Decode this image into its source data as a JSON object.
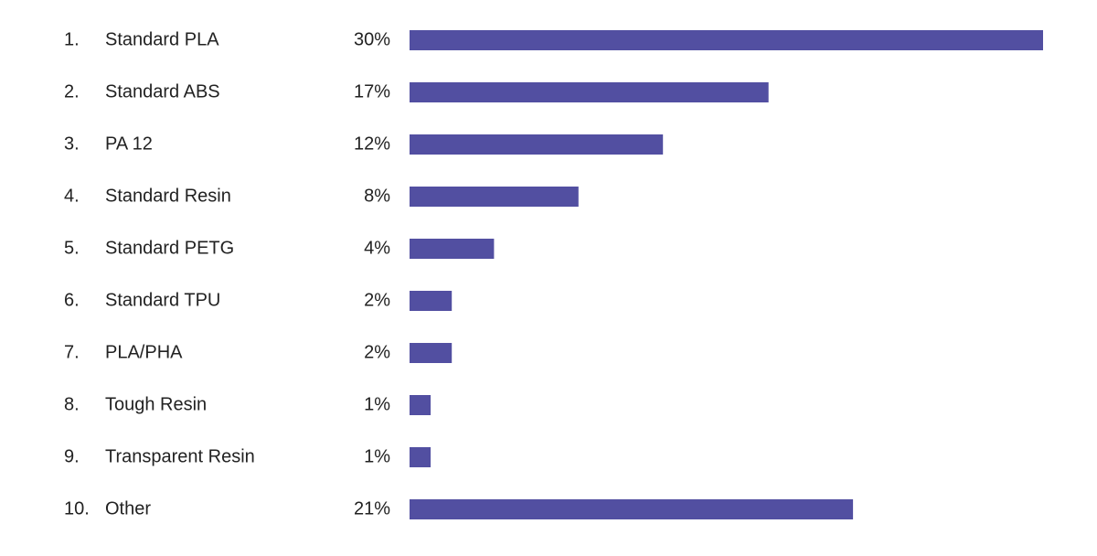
{
  "chart_data": {
    "type": "bar",
    "orientation": "horizontal",
    "ranks": [
      "1.",
      "2.",
      "3.",
      "4.",
      "5.",
      "6.",
      "7.",
      "8.",
      "9.",
      "10."
    ],
    "categories": [
      "Standard PLA",
      "Standard ABS",
      "PA 12",
      "Standard Resin",
      "Standard PETG",
      "Standard TPU",
      "PLA/PHA",
      "Tough Resin",
      "Transparent Resin",
      "Other"
    ],
    "values": [
      30,
      17,
      12,
      8,
      4,
      2,
      2,
      1,
      1,
      21
    ],
    "value_labels": [
      "30%",
      "17%",
      "12%",
      "8%",
      "4%",
      "2%",
      "2%",
      "1%",
      "1%",
      "21%"
    ],
    "color": "#524fa1"
  }
}
